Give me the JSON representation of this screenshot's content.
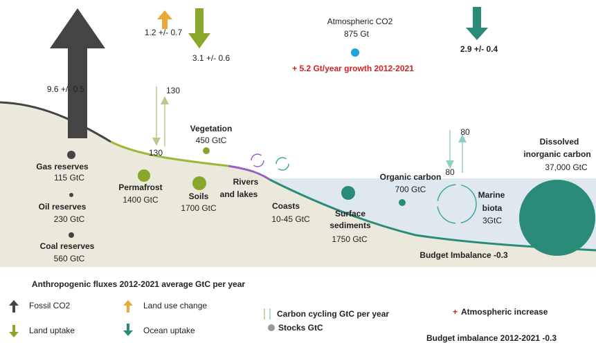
{
  "fluxes": {
    "fossil": "9.6 +/- 0.5",
    "land_use": "1.2 +/- 0.7",
    "land_uptake": "3.1 +/- 0.6",
    "ocean_uptake": "2.9 +/- 0.4"
  },
  "atmosphere": {
    "label": "Atmospheric CO2",
    "stock": "875 Gt",
    "growth": "+ 5.2 Gt/year growth 2012-2021"
  },
  "cycling": {
    "land_up": "130",
    "land_down": "130",
    "ocean_up": "80",
    "ocean_down": "80"
  },
  "stocks": [
    {
      "name": [
        "Gas reserves"
      ],
      "value": "115 GtC"
    },
    {
      "name": [
        "Oil reserves"
      ],
      "value": "230 GtC"
    },
    {
      "name": [
        "Coal reserves"
      ],
      "value": "560 GtC"
    },
    {
      "name": [
        "Permafrost"
      ],
      "value": "1400 GtC"
    },
    {
      "name": [
        "Soils"
      ],
      "value": "1700 GtC"
    },
    {
      "name": [
        "Vegetation"
      ],
      "value": "450 GtC"
    },
    {
      "name": [
        "Rivers",
        "and lakes"
      ]
    },
    {
      "name": [
        "Coasts"
      ],
      "value": "10-45 GtC"
    },
    {
      "name": [
        "Surface",
        "sediments"
      ],
      "value": "1750 GtC"
    },
    {
      "name": [
        "Organic carbon"
      ],
      "value": "700 GtC"
    },
    {
      "name": [
        "Marine",
        "biota"
      ],
      "value": "3GtC"
    },
    {
      "name": [
        "Dissolved",
        "inorganic carbon"
      ],
      "value": "37,000 GtC"
    }
  ],
  "budget_imbalance": "Budget Imbalance -0.3",
  "legend": {
    "title": "Anthropogenic fluxes 2012-2021 average GtC per year",
    "fossil": "Fossil CO2",
    "land_uptake": "Land uptake",
    "land_use": "Land use change",
    "ocean_uptake": "Ocean uptake",
    "cycling": "Carbon cycling GtC per year",
    "stocks": "Stocks GtC",
    "atm_symbol": "+",
    "atm": "Atmospheric increase",
    "imbalance": "Budget imbalance 2012-2021 -0.3"
  }
}
